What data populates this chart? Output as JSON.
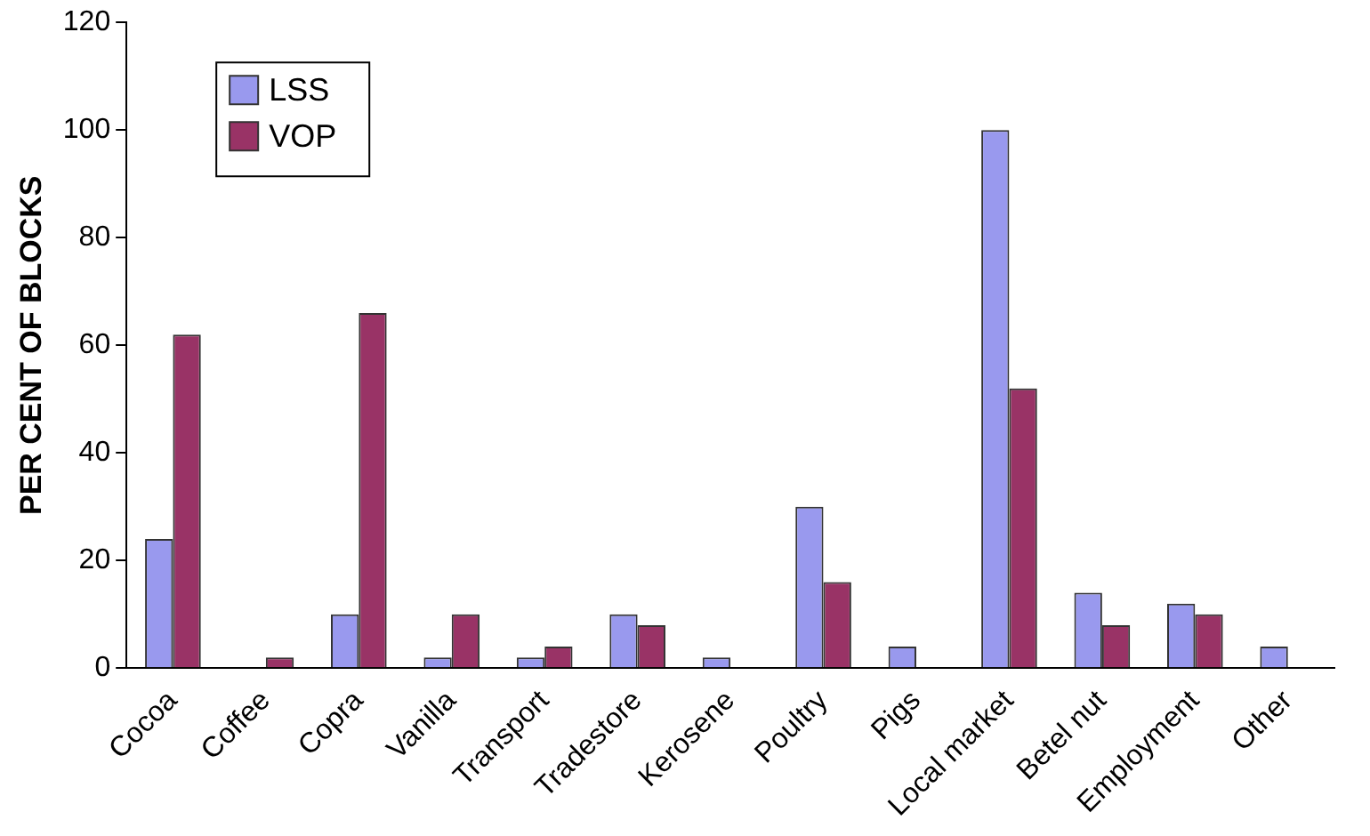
{
  "chart_data": {
    "type": "bar",
    "ylabel": "PER CENT OF BLOCKS",
    "categories": [
      "Cocoa",
      "Coffee",
      "Copra",
      "Vanilla",
      "Transport",
      "Tradestore",
      "Kerosene",
      "Poultry",
      "Pigs",
      "Local market",
      "Betel nut",
      "Employment",
      "Other"
    ],
    "series": [
      {
        "name": "LSS",
        "color": "#9999ee",
        "values": [
          24,
          0,
          10,
          2,
          2,
          10,
          2,
          30,
          4,
          100,
          14,
          12,
          4
        ]
      },
      {
        "name": "VOP",
        "color": "#993366",
        "values": [
          62,
          2,
          66,
          10,
          4,
          8,
          0,
          16,
          0,
          52,
          8,
          10,
          0
        ]
      }
    ],
    "ylim": [
      0,
      120
    ],
    "yticks": [
      0,
      20,
      40,
      60,
      80,
      100,
      120
    ],
    "grid": false,
    "legend": "top left"
  }
}
